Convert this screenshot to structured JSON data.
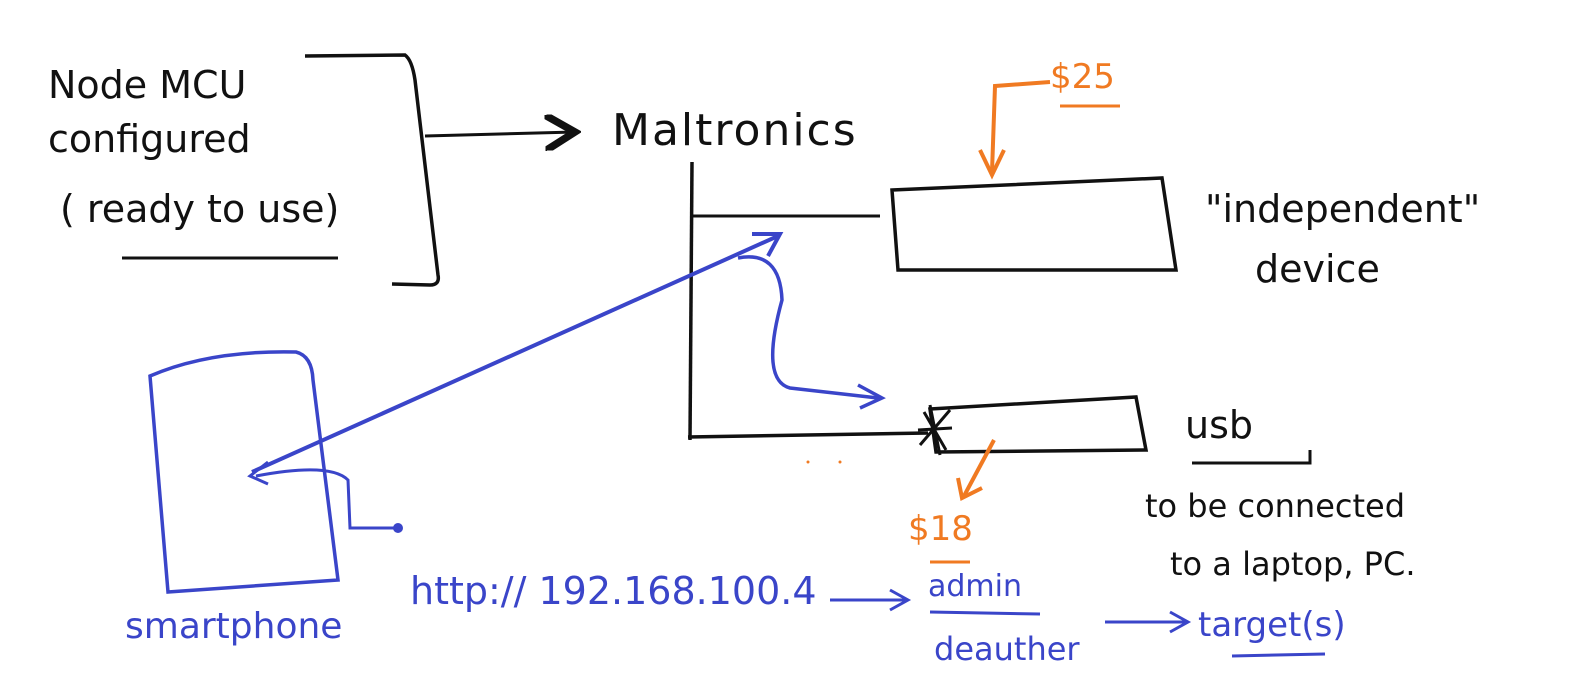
{
  "colors": {
    "black_ink": "#111111",
    "blue_ink": "#3a45c9",
    "orange_ink": "#f07a22",
    "background": "#ffffff"
  },
  "left_note": {
    "line1": "Node MCU",
    "line2": "configured",
    "line3": "( ready to use)"
  },
  "vendor": "Maltronics",
  "price_top": "$25",
  "price_bottom": "$18",
  "independent_label": {
    "line1": "\"independent\"",
    "line2": "device"
  },
  "usb_label": "usb",
  "usb_note": {
    "line1": "to be connected",
    "line2": "to a laptop, PC."
  },
  "smartphone_label": "smartphone",
  "url": "http:// 192.168.100.4",
  "admin_label": "admin",
  "deauther_label": "deauther",
  "targets_label": "target(s)"
}
